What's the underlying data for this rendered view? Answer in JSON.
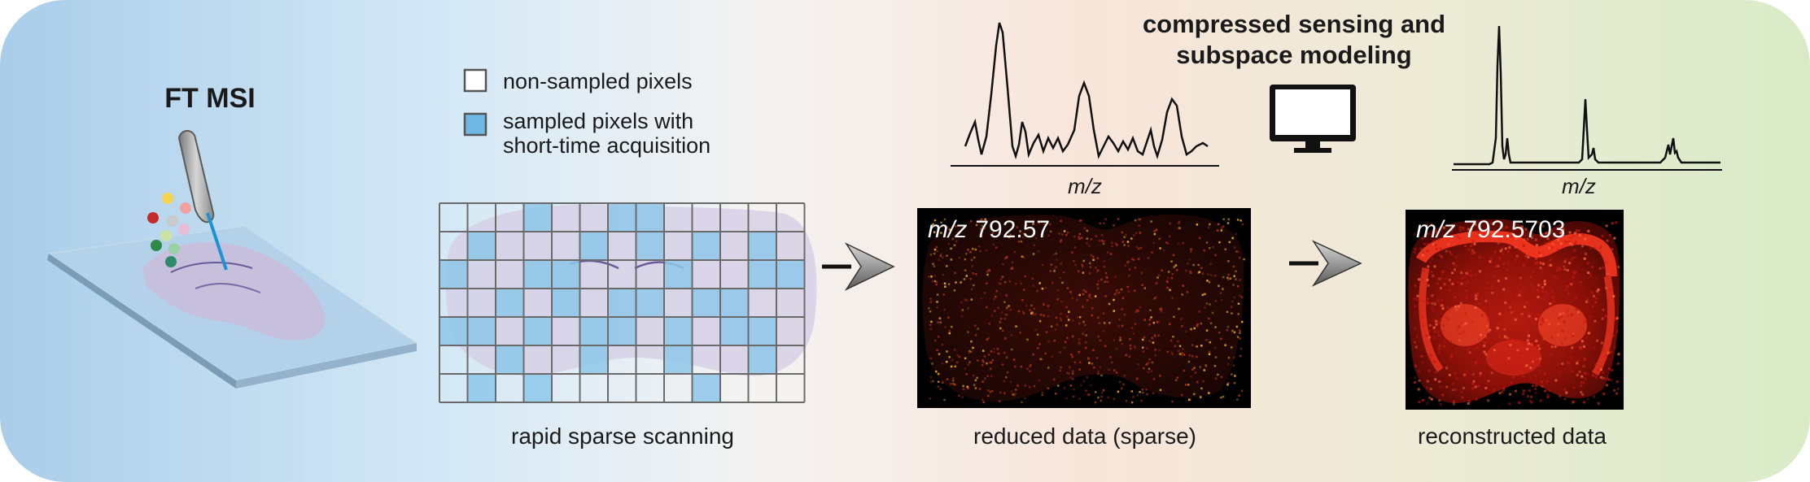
{
  "title_left": "FT MSI",
  "title_right": [
    "compressed sensing and",
    "subspace modeling"
  ],
  "legend": {
    "non_sampled": "non-sampled pixels",
    "sampled_line1": "sampled pixels with",
    "sampled_line2": "short-time acquisition"
  },
  "captions": {
    "scan": "rapid sparse scanning",
    "reduced": "reduced data (sparse)",
    "reconstructed": "reconstructed data"
  },
  "mz_axis_label": "m/z",
  "mz_prefix": "m/z",
  "reduced_mz_value": "792.57",
  "reconstructed_mz_value": "792.5703",
  "colors": {
    "bg_left": "#a9cde9",
    "bg_mid": "#f7e6dc",
    "bg_right": "#dcecc8",
    "sample_blue": "#8ec7e9",
    "grid_line": "#6a6a6a",
    "heat_dark": "#1a0604"
  },
  "icons": [
    "ms-probe-icon",
    "computer-monitor-icon",
    "arrow-icon"
  ]
}
